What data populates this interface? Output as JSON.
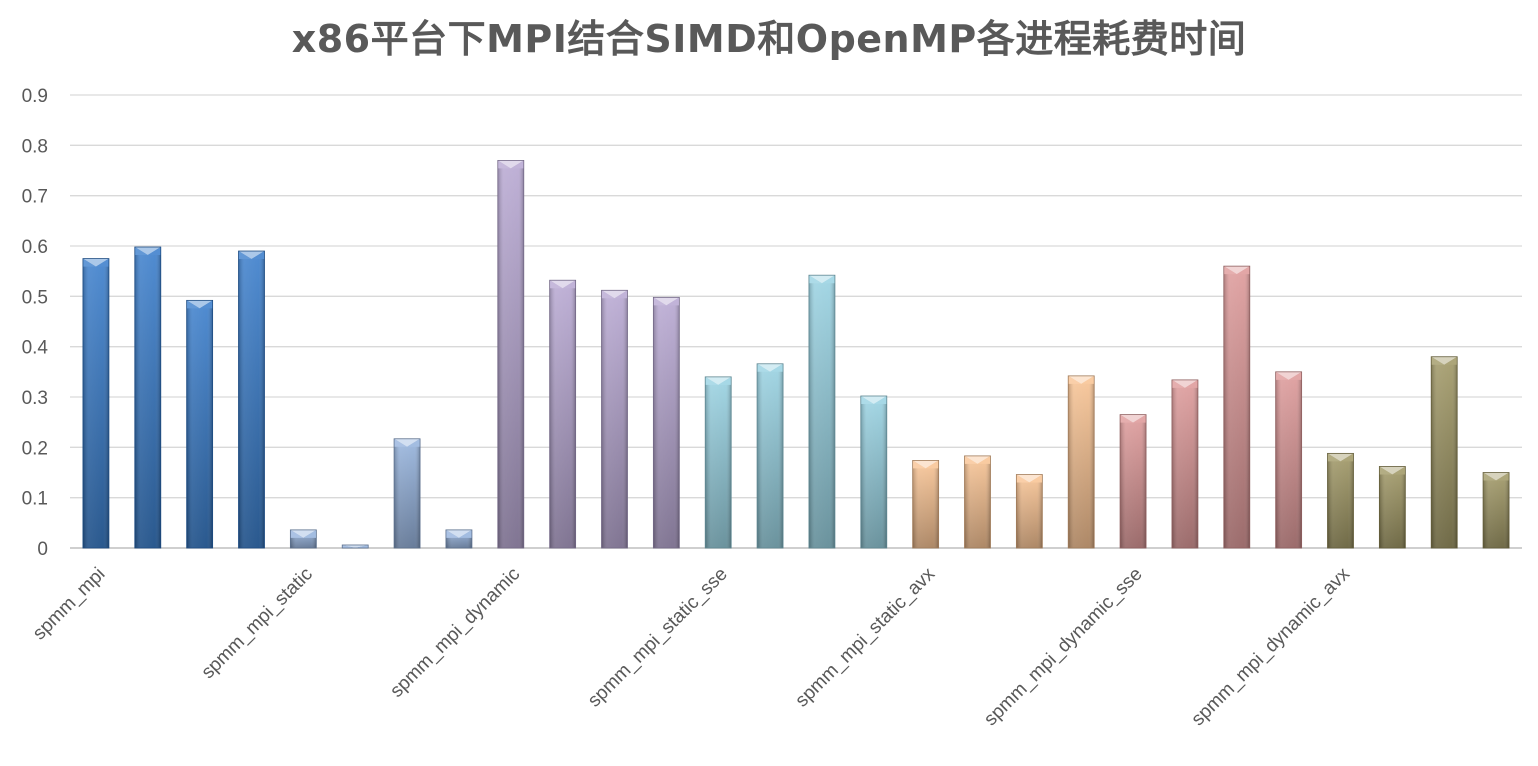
{
  "chart_data": {
    "type": "bar",
    "title": "x86平台下MPI结合SIMD和OpenMP各进程耗费时间",
    "xlabel": "",
    "ylabel": "",
    "ylim": [
      0,
      0.9
    ],
    "yticks": [
      "0",
      "0.1",
      "0.2",
      "0.3",
      "0.4",
      "0.5",
      "0.6",
      "0.7",
      "0.8",
      "0.9"
    ],
    "grid": true,
    "legend": "none",
    "categories": [
      "spmm_mpi",
      "spmm_mpi_static",
      "spmm_mpi_dynamic",
      "spmm_mpi_static_sse",
      "spmm_mpi_static_avx",
      "spmm_mpi_dynamic_sse",
      "spmm_mpi_dynamic_avx"
    ],
    "groups": [
      {
        "color": "#2e75c8",
        "values": [
          0.575,
          0.598,
          0.492,
          0.59
        ]
      },
      {
        "color": "#8faedb",
        "values": [
          0.036,
          0.006,
          0.217,
          0.036
        ]
      },
      {
        "color": "#b3a2cf",
        "values": [
          0.77,
          0.532,
          0.512,
          0.498
        ]
      },
      {
        "color": "#92cfe0",
        "values": [
          0.34,
          0.366,
          0.542,
          0.302
        ]
      },
      {
        "color": "#f8bf8c",
        "values": [
          0.174,
          0.183,
          0.146,
          0.342
        ]
      },
      {
        "color": "#dc9393",
        "values": [
          0.265,
          0.334,
          0.56,
          0.35
        ]
      },
      {
        "color": "#9a915b",
        "values": [
          0.188,
          0.162,
          0.38,
          0.15
        ]
      }
    ]
  }
}
